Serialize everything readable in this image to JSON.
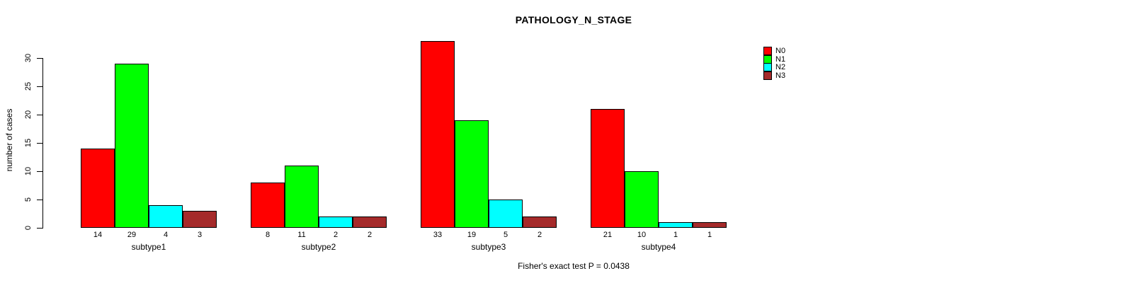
{
  "chart_data": {
    "type": "bar",
    "title": "PATHOLOGY_N_STAGE",
    "ylabel": "number of cases",
    "footer": "Fisher's exact test P = 0.0438",
    "ylim": [
      0,
      30
    ],
    "yticks": [
      0,
      5,
      10,
      15,
      20,
      25,
      30
    ],
    "categories": [
      "subtype1",
      "subtype2",
      "subtype3",
      "subtype4"
    ],
    "series": [
      {
        "name": "N0",
        "color": "#FF0000",
        "values": [
          14,
          8,
          33,
          21
        ]
      },
      {
        "name": "N1",
        "color": "#00FF00",
        "values": [
          29,
          11,
          19,
          10
        ]
      },
      {
        "name": "N2",
        "color": "#00FFFF",
        "values": [
          4,
          2,
          5,
          1
        ]
      },
      {
        "name": "N3",
        "color": "#A52A2A",
        "values": [
          3,
          2,
          2,
          1
        ]
      }
    ],
    "bar_value_labels": true,
    "legend_position": "top-right",
    "grid": false
  }
}
